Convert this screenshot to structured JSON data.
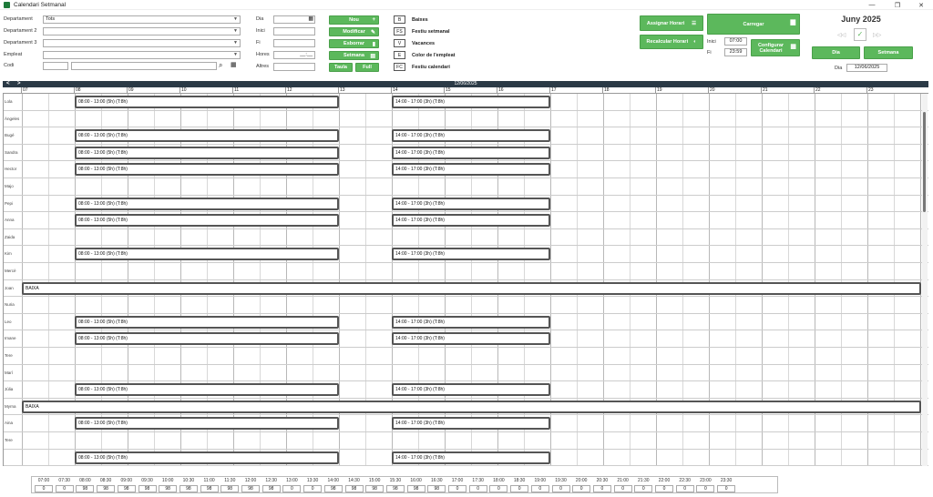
{
  "window": {
    "title": "Calendari Setmanal"
  },
  "filters": {
    "departament_label": "Departament",
    "departament_value": "Tots",
    "departament2_label": "Departament 2",
    "departament3_label": "Departament 3",
    "empleat_label": "Empleat",
    "codi_label": "Codi",
    "dia_label": "Dia",
    "inici_label": "Inici",
    "fi_label": "Fi",
    "hores_label": "Hores",
    "hores_placeholder": "__:__",
    "altres_label": "Altres"
  },
  "actions": {
    "nou": "Nou",
    "modificar": "Modificar",
    "esborrar": "Esborrar",
    "setmana": "Setmana",
    "taula": "Taula",
    "full": "Full"
  },
  "legend": [
    {
      "code": "B",
      "label": "Baixes"
    },
    {
      "code": "FS",
      "label": "Festiu setmanal"
    },
    {
      "code": "V",
      "label": "Vacances"
    },
    {
      "code": "E",
      "label": "Color de l'empleat"
    },
    {
      "code": "FC",
      "label": "Festiu calendari"
    }
  ],
  "right_panel": {
    "assignar": "Assignar Horari",
    "recalcular": "Recalcular Horari",
    "carregar": "Carregar",
    "configurar": "Configurar Calendari",
    "inici_label": "Inici",
    "inici_value": "07:00",
    "fi_label": "Fi",
    "fi_value": "23:59",
    "month": "Juny 2025",
    "dia_btn": "Dia",
    "setmana_btn": "Setmana",
    "dia_label": "Dia",
    "dia_value": "12/06/2025"
  },
  "grid": {
    "date": "12/06/2025",
    "hours": [
      "07",
      "08",
      "09",
      "10",
      "11",
      "12",
      "13",
      "14",
      "15",
      "16",
      "17",
      "18",
      "19",
      "20",
      "21",
      "22",
      "23"
    ],
    "rows": [
      {
        "name": "Lola",
        "morning": "08:00 - 13:00 (5h) (T:8h)",
        "afternoon": "14:00 - 17:00 (3h) (T:8h)"
      },
      {
        "name": "Àngeles"
      },
      {
        "name": "Bugé",
        "morning": "08:00 - 13:00 (5h) (T:8h)",
        "afternoon": "14:00 - 17:00 (3h) (T:8h)"
      },
      {
        "name": "Sandra",
        "morning": "08:00 - 13:00 (5h) (T:8h)",
        "afternoon": "14:00 - 17:00 (3h) (T:8h)"
      },
      {
        "name": "Hector",
        "morning": "08:00 - 13:00 (5h) (T:8h)",
        "afternoon": "14:00 - 17:00 (3h) (T:8h)"
      },
      {
        "name": "Majo"
      },
      {
        "name": "Pepi",
        "morning": "08:00 - 13:00 (5h) (T:8h)",
        "afternoon": "14:00 - 17:00 (3h) (T:8h)"
      },
      {
        "name": "Anna",
        "morning": "08:00 - 13:00 (5h) (T:8h)",
        "afternoon": "14:00 - 17:00 (3h) (T:8h)"
      },
      {
        "name": "Zaida"
      },
      {
        "name": "Kim",
        "morning": "08:00 - 13:00 (5h) (T:8h)",
        "afternoon": "14:00 - 17:00 (3h) (T:8h)"
      },
      {
        "name": "Mercè"
      },
      {
        "name": "Joan",
        "full": "BAIXA"
      },
      {
        "name": "Nuria"
      },
      {
        "name": "Leo",
        "morning": "08:00 - 13:00 (5h) (T:8h)",
        "afternoon": "14:00 - 17:00 (3h) (T:8h)"
      },
      {
        "name": "Imane",
        "morning": "08:00 - 13:00 (5h) (T:8h)",
        "afternoon": "14:00 - 17:00 (3h) (T:8h)"
      },
      {
        "name": "Tere"
      },
      {
        "name": "Marí"
      },
      {
        "name": "Júlia",
        "morning": "08:00 - 13:00 (5h) (T:8h)",
        "afternoon": "14:00 - 17:00 (3h) (T:8h)"
      },
      {
        "name": "Myrna",
        "full": "BAIXA"
      },
      {
        "name": "Aina",
        "morning": "08:00 - 13:00 (5h) (T:8h)",
        "afternoon": "14:00 - 17:00 (3h) (T:8h)"
      },
      {
        "name": "Tere"
      },
      {
        "name": "",
        "morning": "08:00 - 13:00 (5h) (T:8h)",
        "afternoon": "14:00 - 17:00 (3h) (T:8h)"
      }
    ]
  },
  "footer": {
    "times": [
      "07:00",
      "07:30",
      "08:00",
      "08:30",
      "09:00",
      "09:30",
      "10:00",
      "10:30",
      "11:00",
      "11:30",
      "12:00",
      "12:30",
      "13:00",
      "13:30",
      "14:00",
      "14:30",
      "15:00",
      "15:30",
      "16:00",
      "16:30",
      "17:00",
      "17:30",
      "18:00",
      "18:30",
      "19:00",
      "19:30",
      "20:00",
      "20:30",
      "21:00",
      "21:30",
      "22:00",
      "22:30",
      "23:00",
      "23:30"
    ],
    "values": [
      "0",
      "0",
      "98",
      "98",
      "98",
      "98",
      "98",
      "98",
      "98",
      "98",
      "98",
      "98",
      "0",
      "0",
      "98",
      "98",
      "98",
      "98",
      "98",
      "98",
      "0",
      "0",
      "0",
      "0",
      "0",
      "0",
      "0",
      "0",
      "0",
      "0",
      "0",
      "0",
      "0",
      "0"
    ]
  }
}
